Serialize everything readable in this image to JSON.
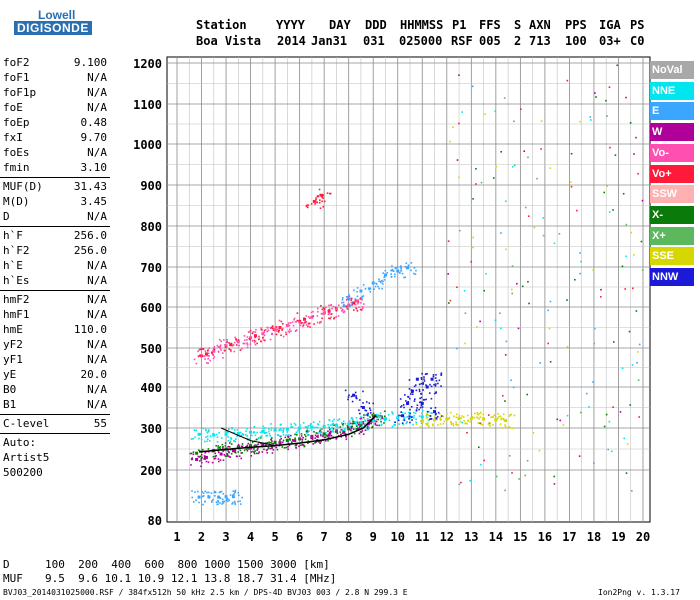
{
  "logo": {
    "top": "Lowell",
    "bottom": "DIGISONDE"
  },
  "header": {
    "labels": [
      "Station",
      "YYYY",
      "DAY",
      "DDD",
      "HHMMSS",
      "P1",
      "FFS",
      "S",
      "AXN",
      "PPS",
      "IGA",
      "PS"
    ],
    "values": [
      "Boa Vista",
      "2014",
      "Jan31",
      "031",
      "025000",
      "RSF",
      "005",
      "2",
      "713",
      "100",
      "03+",
      "C0"
    ]
  },
  "params": {
    "group1": [
      {
        "name": "foF2",
        "value": "9.100"
      },
      {
        "name": "foF1",
        "value": "N/A"
      },
      {
        "name": "foF1p",
        "value": "N/A"
      },
      {
        "name": "foE",
        "value": "N/A"
      },
      {
        "name": "foEp",
        "value": "0.48"
      },
      {
        "name": "fxI",
        "value": "9.70"
      },
      {
        "name": "foEs",
        "value": "N/A"
      },
      {
        "name": "fmin",
        "value": "3.10"
      }
    ],
    "group2": [
      {
        "name": "MUF(D)",
        "value": "31.43"
      },
      {
        "name": "M(D)",
        "value": "3.45"
      },
      {
        "name": "D",
        "value": "N/A"
      }
    ],
    "group3": [
      {
        "name": "h`F",
        "value": "256.0"
      },
      {
        "name": "h`F2",
        "value": "256.0"
      },
      {
        "name": "h`E",
        "value": "N/A"
      },
      {
        "name": "h`Es",
        "value": "N/A"
      }
    ],
    "group4": [
      {
        "name": "hmF2",
        "value": "N/A"
      },
      {
        "name": "hmF1",
        "value": "N/A"
      },
      {
        "name": "hmE",
        "value": "110.0"
      },
      {
        "name": "yF2",
        "value": "N/A"
      },
      {
        "name": "yF1",
        "value": "N/A"
      },
      {
        "name": "yE",
        "value": "20.0"
      },
      {
        "name": "B0",
        "value": "N/A"
      },
      {
        "name": "B1",
        "value": "N/A"
      }
    ],
    "clevel": {
      "name": "C-level",
      "value": "55"
    },
    "auto": [
      "Auto:",
      "Artist5",
      "500200"
    ]
  },
  "legend": [
    {
      "label": "NoVal",
      "color": "#a8a8a8"
    },
    {
      "label": "NNE",
      "color": "#00e5ee"
    },
    {
      "label": "E",
      "color": "#3aa6ff"
    },
    {
      "label": "W",
      "color": "#b0009a"
    },
    {
      "label": "Vo-",
      "color": "#ff4fb0"
    },
    {
      "label": "Vo+",
      "color": "#ff1a3a"
    },
    {
      "label": "SSW",
      "color": "#ffb0b0"
    },
    {
      "label": "X-",
      "color": "#0a7a0a"
    },
    {
      "label": "X+",
      "color": "#5cb85c"
    },
    {
      "label": "SSE",
      "color": "#d7d700"
    },
    {
      "label": "NNW",
      "color": "#1a1ad8"
    }
  ],
  "footer": {
    "d_label": "D",
    "d_values": "100  200  400  600  800 1000 1500 3000 [km]",
    "muf_label": "MUF",
    "muf_values": "9.5  9.6 10.1 10.9 12.1 13.8 18.7 31.4 [MHz]",
    "file_line": "BVJ03_2014031025000.RSF / 384fx512h 50 kHz 2.5 km / DPS-4D BVJ03 003 / 2.8 N 299.3 E",
    "version": "Ion2Png v. 1.3.17"
  },
  "chart_data": {
    "type": "scatter",
    "title": "",
    "xlabel": "",
    "ylabel": "",
    "xlim": [
      1,
      20
    ],
    "ylim": [
      80,
      1200
    ],
    "x_ticks": [
      1,
      2,
      3,
      4,
      5,
      6,
      7,
      8,
      9,
      10,
      11,
      12,
      13,
      14,
      15,
      16,
      17,
      18,
      19,
      20
    ],
    "y_ticks": [
      80,
      200,
      300,
      400,
      500,
      600,
      700,
      800,
      900,
      1000,
      1100,
      1200
    ],
    "grid": true,
    "series": [
      {
        "name": "X+",
        "color": "#0a7a0a",
        "values": [
          [
            1.8,
            240
          ],
          [
            2.5,
            246
          ],
          [
            3.0,
            250
          ],
          [
            3.5,
            255
          ],
          [
            4.0,
            258
          ],
          [
            4.5,
            262
          ],
          [
            5.0,
            266
          ],
          [
            5.5,
            270
          ],
          [
            6.0,
            274
          ],
          [
            6.5,
            280
          ],
          [
            7.0,
            286
          ],
          [
            7.5,
            292
          ],
          [
            8.0,
            298
          ],
          [
            8.5,
            306
          ],
          [
            8.9,
            318
          ],
          [
            9.1,
            330
          ]
        ]
      },
      {
        "name": "W",
        "color": "#b0009a",
        "values": [
          [
            1.8,
            225
          ],
          [
            2.2,
            230
          ],
          [
            2.8,
            238
          ],
          [
            3.3,
            246
          ],
          [
            4.0,
            252
          ],
          [
            4.5,
            258
          ],
          [
            5.2,
            265
          ],
          [
            5.8,
            270
          ],
          [
            6.5,
            277
          ],
          [
            7.2,
            283
          ],
          [
            7.8,
            290
          ],
          [
            8.4,
            300
          ],
          [
            8.8,
            310
          ],
          [
            9.0,
            322
          ]
        ]
      },
      {
        "name": "NNE",
        "color": "#00e5ee",
        "values": [
          [
            1.9,
            285
          ],
          [
            2.5,
            283
          ],
          [
            3.0,
            285
          ],
          [
            3.5,
            287
          ],
          [
            4.0,
            290
          ],
          [
            4.5,
            292
          ],
          [
            5.0,
            295
          ],
          [
            5.5,
            297
          ],
          [
            6.0,
            300
          ],
          [
            6.5,
            302
          ],
          [
            7.0,
            304
          ],
          [
            7.5,
            307
          ],
          [
            8.0,
            310
          ],
          [
            8.5,
            313
          ],
          [
            9.0,
            318
          ],
          [
            9.5,
            322
          ],
          [
            10.0,
            325
          ],
          [
            10.5,
            326
          ],
          [
            11.0,
            327
          ]
        ]
      },
      {
        "name": "SSE",
        "color": "#d7d700",
        "values": [
          [
            11.0,
            318
          ],
          [
            11.5,
            320
          ],
          [
            12.0,
            322
          ],
          [
            12.5,
            323
          ],
          [
            13.0,
            323
          ],
          [
            13.5,
            322
          ],
          [
            14.0,
            320
          ],
          [
            14.4,
            318
          ]
        ]
      },
      {
        "name": "Vo-",
        "color": "#ff4fb0",
        "values": [
          [
            2.0,
            480
          ],
          [
            2.5,
            492
          ],
          [
            3.0,
            505
          ],
          [
            3.5,
            515
          ],
          [
            4.0,
            525
          ],
          [
            4.5,
            535
          ],
          [
            5.0,
            545
          ],
          [
            5.5,
            555
          ],
          [
            6.0,
            565
          ],
          [
            6.5,
            575
          ],
          [
            7.0,
            585
          ],
          [
            7.5,
            595
          ],
          [
            8.0,
            605
          ],
          [
            8.3,
            615
          ]
        ]
      },
      {
        "name": "Vo+",
        "color": "#ff1a3a",
        "values": [
          [
            2.2,
            485
          ],
          [
            3.2,
            508
          ],
          [
            4.2,
            530
          ],
          [
            5.2,
            550
          ],
          [
            6.2,
            570
          ],
          [
            7.2,
            590
          ],
          [
            8.2,
            610
          ],
          [
            6.6,
            860
          ],
          [
            6.9,
            875
          ]
        ]
      },
      {
        "name": "E",
        "color": "#3aa6ff",
        "values": [
          [
            1.9,
            135
          ],
          [
            2.3,
            135
          ],
          [
            2.7,
            135
          ],
          [
            3.0,
            136
          ],
          [
            3.3,
            136
          ],
          [
            8.0,
            620
          ],
          [
            8.5,
            640
          ],
          [
            9.0,
            660
          ],
          [
            9.5,
            680
          ],
          [
            10.0,
            690
          ],
          [
            10.4,
            698
          ]
        ]
      },
      {
        "name": "NNW",
        "color": "#1a1ad8",
        "values": [
          [
            10.2,
            330
          ],
          [
            10.4,
            360
          ],
          [
            10.6,
            390
          ],
          [
            10.8,
            420
          ],
          [
            11.0,
            360
          ],
          [
            11.2,
            400
          ],
          [
            11.4,
            420
          ],
          [
            11.5,
            340
          ],
          [
            8.6,
            350
          ],
          [
            8.2,
            380
          ]
        ]
      }
    ]
  }
}
